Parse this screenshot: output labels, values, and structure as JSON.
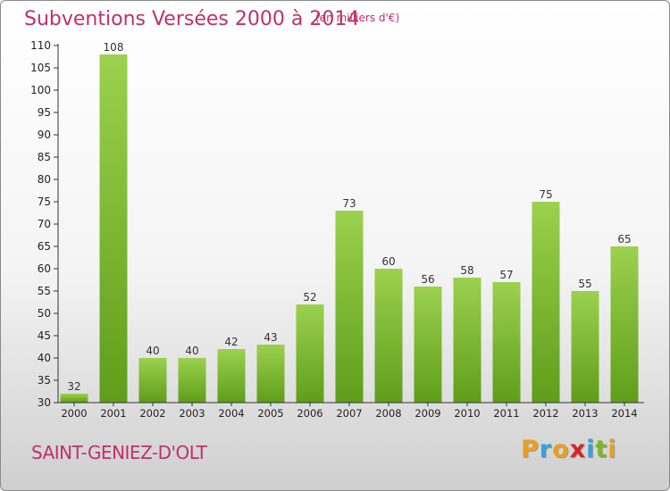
{
  "header": {
    "title": "Subventions Versées 2000 à 2014",
    "unit_note": "(en milliers d'€)"
  },
  "footer": {
    "commune": "SAINT-GENIEZ-D'OLT",
    "brand": "Proxiti",
    "brand_letters": [
      "P",
      "r",
      "o",
      "x",
      "i",
      "t",
      "i"
    ],
    "brand_colors": [
      "#e8a020",
      "#3aa0d8",
      "#e8a020",
      "#d8232a",
      "#3aa0d8",
      "#7ab82a",
      "#e8a020"
    ]
  },
  "colors": {
    "accent": "#c0306a",
    "bar_top": "#9bd14f",
    "bar_bottom": "#5f9e1a"
  },
  "chart_data": {
    "type": "bar",
    "title": "Subventions Versées 2000 à 2014",
    "subtitle": "(en milliers d'€)",
    "xlabel": "",
    "ylabel": "",
    "categories": [
      "2000",
      "2001",
      "2002",
      "2003",
      "2004",
      "2005",
      "2006",
      "2007",
      "2008",
      "2009",
      "2010",
      "2011",
      "2012",
      "2013",
      "2014"
    ],
    "values": [
      32,
      108,
      40,
      40,
      42,
      43,
      52,
      73,
      60,
      56,
      58,
      57,
      75,
      55,
      65
    ],
    "ylim": [
      30,
      110
    ],
    "yticks": [
      30,
      35,
      40,
      45,
      50,
      55,
      60,
      65,
      70,
      75,
      80,
      85,
      90,
      95,
      100,
      105,
      110
    ],
    "grid": false,
    "legend": "none",
    "data_labels": true
  }
}
